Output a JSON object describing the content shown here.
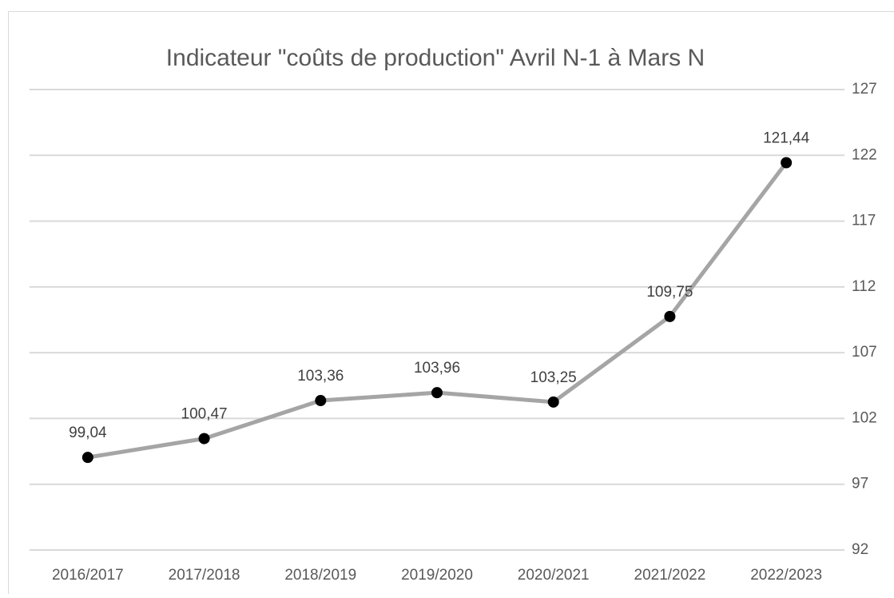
{
  "chart_data": {
    "type": "line",
    "title": "Indicateur \"coûts de production\" Avril N-1 à Mars N",
    "categories": [
      "2016/2017",
      "2017/2018",
      "2018/2019",
      "2019/2020",
      "2020/2021",
      "2021/2022",
      "2022/2023"
    ],
    "series": [
      {
        "color": "#a5a5a5",
        "marker_color": "#000000",
        "values": [
          99.04,
          100.47,
          103.36,
          103.96,
          103.25,
          109.75,
          121.44
        ],
        "value_labels": [
          "99,04",
          "100,47",
          "103,36",
          "103,96",
          "103,25",
          "109,75",
          "121,44"
        ]
      }
    ],
    "ylim": [
      92,
      127
    ],
    "yticks": [
      92,
      97,
      102,
      107,
      112,
      117,
      122,
      127
    ],
    "grid": true,
    "y_axis_position": "right"
  }
}
